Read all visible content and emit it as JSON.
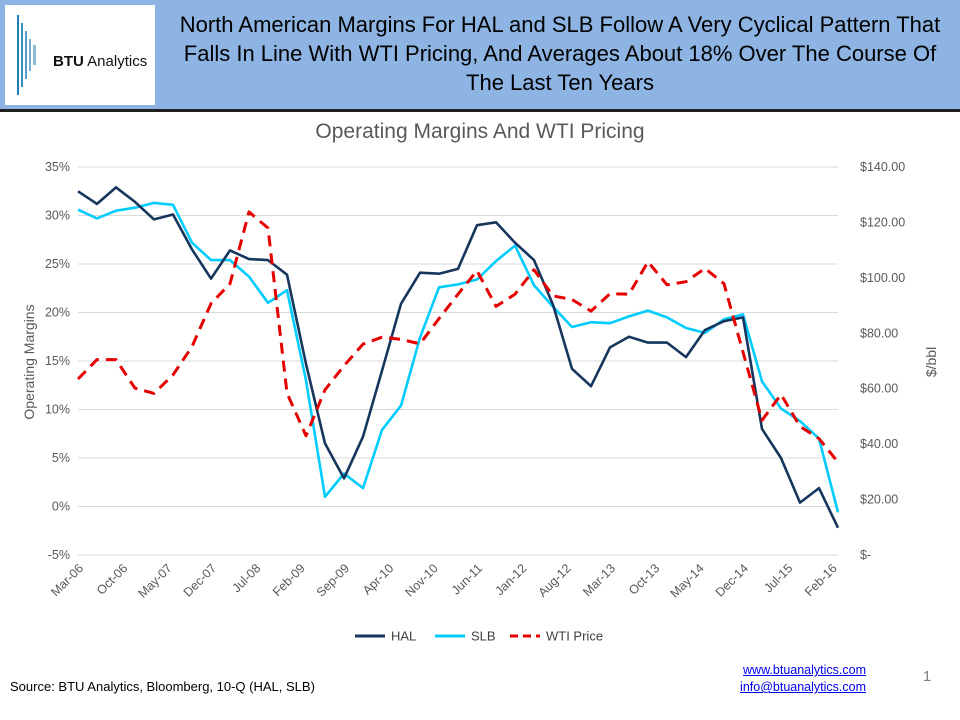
{
  "header": {
    "logo_text_bold": "BTU",
    "logo_text_rest": " Analytics",
    "title": "North American Margins For HAL and SLB Follow A Very Cyclical Pattern That Falls In Line With WTI Pricing, And Averages About 18% Over The Course Of The Last Ten Years"
  },
  "footer": {
    "source": "Source:  BTU Analytics, Bloomberg,  10-Q (HAL, SLB)",
    "link_web": "www.btuanalytics.com",
    "link_email": "info@btuanalytics.com",
    "page_number": "1"
  },
  "colors": {
    "header_bg": "#8db4e2",
    "hal": "#17365d",
    "slb": "#00ccff",
    "wti": "#e60000",
    "grid": "#d9d9d9",
    "logo_bars": "#1f7fb5"
  },
  "chart_data": {
    "type": "line",
    "title": "Operating Margins And WTI Pricing",
    "ylabel": "Operating Margins",
    "y2label": "$/bbl",
    "ylim": [
      -5,
      35
    ],
    "y2lim": [
      0,
      140
    ],
    "yticks": [
      "35%",
      "30%",
      "25%",
      "20%",
      "15%",
      "10%",
      "5%",
      "0%",
      "-5%"
    ],
    "y2ticks": [
      "$140.00",
      "$120.00",
      "$100.00",
      "$80.00",
      "$60.00",
      "$40.00",
      "$20.00",
      "$-"
    ],
    "categories": [
      "Mar-06",
      "Jun-06",
      "Sep-06",
      "Dec-06",
      "Mar-07",
      "Jun-07",
      "Sep-07",
      "Dec-07",
      "Mar-08",
      "Jun-08",
      "Sep-08",
      "Dec-08",
      "Mar-09",
      "Jun-09",
      "Sep-09",
      "Dec-09",
      "Mar-10",
      "Jun-10",
      "Sep-10",
      "Dec-10",
      "Mar-11",
      "Jun-11",
      "Sep-11",
      "Dec-11",
      "Mar-12",
      "Jun-12",
      "Sep-12",
      "Dec-12",
      "Mar-13",
      "Jun-13",
      "Sep-13",
      "Dec-13",
      "Mar-14",
      "Jun-14",
      "Sep-14",
      "Dec-14",
      "Mar-15",
      "Jun-15",
      "Sep-15",
      "Dec-15",
      "Mar-16"
    ],
    "tick_labels": [
      "Mar-06",
      "Oct-06",
      "May-07",
      "Dec-07",
      "Jul-08",
      "Feb-09",
      "Sep-09",
      "Apr-10",
      "Nov-10",
      "Jun-11",
      "Jan-12",
      "Aug-12",
      "Mar-13",
      "Oct-13",
      "May-14",
      "Dec-14",
      "Jul-15",
      "Feb-16"
    ],
    "tick_label_indices": [
      0,
      2.33,
      4.67,
      7,
      9.33,
      11.67,
      14,
      16.33,
      18.67,
      21,
      23.33,
      25.67,
      28,
      30.33,
      32.67,
      35,
      37.33,
      39.67
    ],
    "legend_position": "bottom",
    "series": [
      {
        "name": "HAL",
        "axis": "left",
        "style": "solid",
        "values": [
          32.5,
          31.2,
          32.9,
          31.4,
          29.6,
          30.1,
          26.5,
          23.5,
          26.4,
          25.5,
          25.4,
          23.9,
          14.7,
          6.5,
          2.9,
          7.2,
          14.0,
          20.9,
          24.1,
          24.0,
          24.5,
          29.0,
          29.3,
          27.2,
          25.4,
          20.8,
          14.2,
          12.4,
          16.4,
          17.5,
          16.9,
          16.9,
          15.4,
          18.2,
          19.1,
          19.5,
          8.0,
          5.0,
          0.4,
          1.9,
          -2.2
        ]
      },
      {
        "name": "SLB",
        "axis": "left",
        "style": "solid",
        "values": [
          30.6,
          29.7,
          30.5,
          30.8,
          31.3,
          31.1,
          27.2,
          25.4,
          25.4,
          23.7,
          21.0,
          22.3,
          13.0,
          1.0,
          3.4,
          1.9,
          7.9,
          10.4,
          17.4,
          22.6,
          22.9,
          23.4,
          25.3,
          26.9,
          22.8,
          20.6,
          18.5,
          19.0,
          18.9,
          19.6,
          20.2,
          19.5,
          18.4,
          17.9,
          19.3,
          19.8,
          12.9,
          10.1,
          8.8,
          7.0,
          -0.6
        ]
      },
      {
        "name": "WTI Price",
        "axis": "right",
        "style": "dashed",
        "values": [
          63.5,
          70.5,
          70.5,
          60.2,
          58.3,
          65.0,
          75.2,
          90.7,
          97.9,
          123.8,
          118.0,
          58.4,
          43.0,
          59.6,
          68.3,
          76.1,
          78.6,
          77.8,
          76.2,
          85.3,
          94.1,
          102.6,
          89.7,
          94.1,
          102.9,
          93.5,
          92.2,
          88.0,
          94.3,
          94.1,
          105.8,
          97.5,
          98.6,
          103.4,
          97.9,
          73.2,
          48.6,
          57.9,
          46.4,
          42.0,
          33.5
        ]
      }
    ]
  }
}
